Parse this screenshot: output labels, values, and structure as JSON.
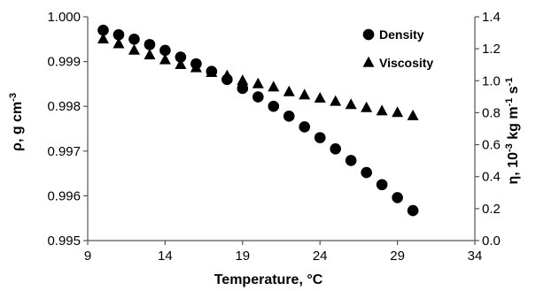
{
  "chart_data": {
    "type": "scatter",
    "xlabel": "Temperature, °C",
    "ylabel_left": "ρ, g cm-3",
    "ylabel_left_parts": {
      "base": "ρ, g cm",
      "sup": "-3"
    },
    "ylabel_right": "η, 10-3 kg m-1 s-1",
    "ylabel_right_parts": [
      {
        "text": "η, 10",
        "sup": false
      },
      {
        "text": "-3",
        "sup": true
      },
      {
        "text": " kg m",
        "sup": false
      },
      {
        "text": "-1",
        "sup": true
      },
      {
        "text": " s",
        "sup": false
      },
      {
        "text": "-1",
        "sup": true
      }
    ],
    "xlim": [
      9,
      34
    ],
    "ylim_left": [
      0.995,
      1.0
    ],
    "ylim_right": [
      0.0,
      1.4
    ],
    "xticks": [
      9,
      14,
      19,
      24,
      29,
      34
    ],
    "xtick_labels": [
      "9",
      "14",
      "19",
      "24",
      "29",
      "34"
    ],
    "yticks_left": [
      0.995,
      0.996,
      0.997,
      0.998,
      0.999,
      1.0
    ],
    "ytick_labels_left": [
      "0.995",
      "0.996",
      "0.997",
      "0.998",
      "0.999",
      "1.000"
    ],
    "yticks_right": [
      0.0,
      0.2,
      0.4,
      0.6,
      0.8,
      1.0,
      1.2,
      1.4
    ],
    "ytick_labels_right": [
      "0.0",
      "0.2",
      "0.4",
      "0.6",
      "0.8",
      "1.0",
      "1.2",
      "1.4"
    ],
    "grid": false,
    "legend_position": "top-right",
    "series": [
      {
        "name": "Density",
        "marker": "circle",
        "axis": "left",
        "color": "#000000",
        "x": [
          10,
          11,
          12,
          13,
          14,
          15,
          16,
          17,
          18,
          19,
          20,
          21,
          22,
          23,
          24,
          25,
          26,
          27,
          28,
          29,
          30
        ],
        "y": [
          0.9997,
          0.9996,
          0.9995,
          0.99938,
          0.99925,
          0.9991,
          0.99895,
          0.99878,
          0.9986,
          0.9984,
          0.99821,
          0.998,
          0.99778,
          0.99754,
          0.9973,
          0.99705,
          0.99679,
          0.99652,
          0.99625,
          0.99596,
          0.99567
        ]
      },
      {
        "name": "Viscosity",
        "marker": "triangle",
        "axis": "right",
        "color": "#000000",
        "x": [
          10,
          11,
          12,
          13,
          14,
          15,
          16,
          17,
          18,
          19,
          20,
          21,
          22,
          23,
          24,
          25,
          26,
          27,
          28,
          29,
          30
        ],
        "y": [
          1.26,
          1.23,
          1.19,
          1.16,
          1.13,
          1.1,
          1.08,
          1.05,
          1.03,
          1.0,
          0.98,
          0.96,
          0.93,
          0.91,
          0.89,
          0.87,
          0.85,
          0.83,
          0.81,
          0.8,
          0.78
        ]
      }
    ]
  }
}
